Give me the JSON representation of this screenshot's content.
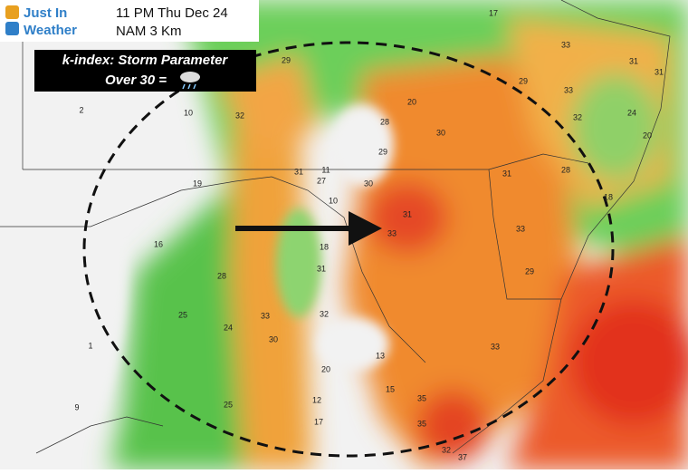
{
  "header": {
    "brand_line1": "Just In",
    "brand_line2": "Weather",
    "time": "11 PM Thu Dec 24",
    "model": "NAM 3 Km"
  },
  "legend": {
    "title": "k-index: Storm Parameter",
    "threshold": "Over 30 ="
  },
  "map": {
    "labels": [
      17,
      33,
      31,
      31,
      29,
      29,
      33,
      24,
      20,
      2,
      10,
      32,
      20,
      28,
      30,
      29,
      31,
      11,
      27,
      31,
      28,
      19,
      10,
      30,
      18,
      16,
      31,
      33,
      18,
      33,
      28,
      31,
      29,
      25,
      24,
      33,
      32,
      13,
      20,
      1,
      9,
      25,
      12,
      17,
      15,
      35,
      35,
      32,
      37,
      30,
      33,
      32
    ]
  }
}
